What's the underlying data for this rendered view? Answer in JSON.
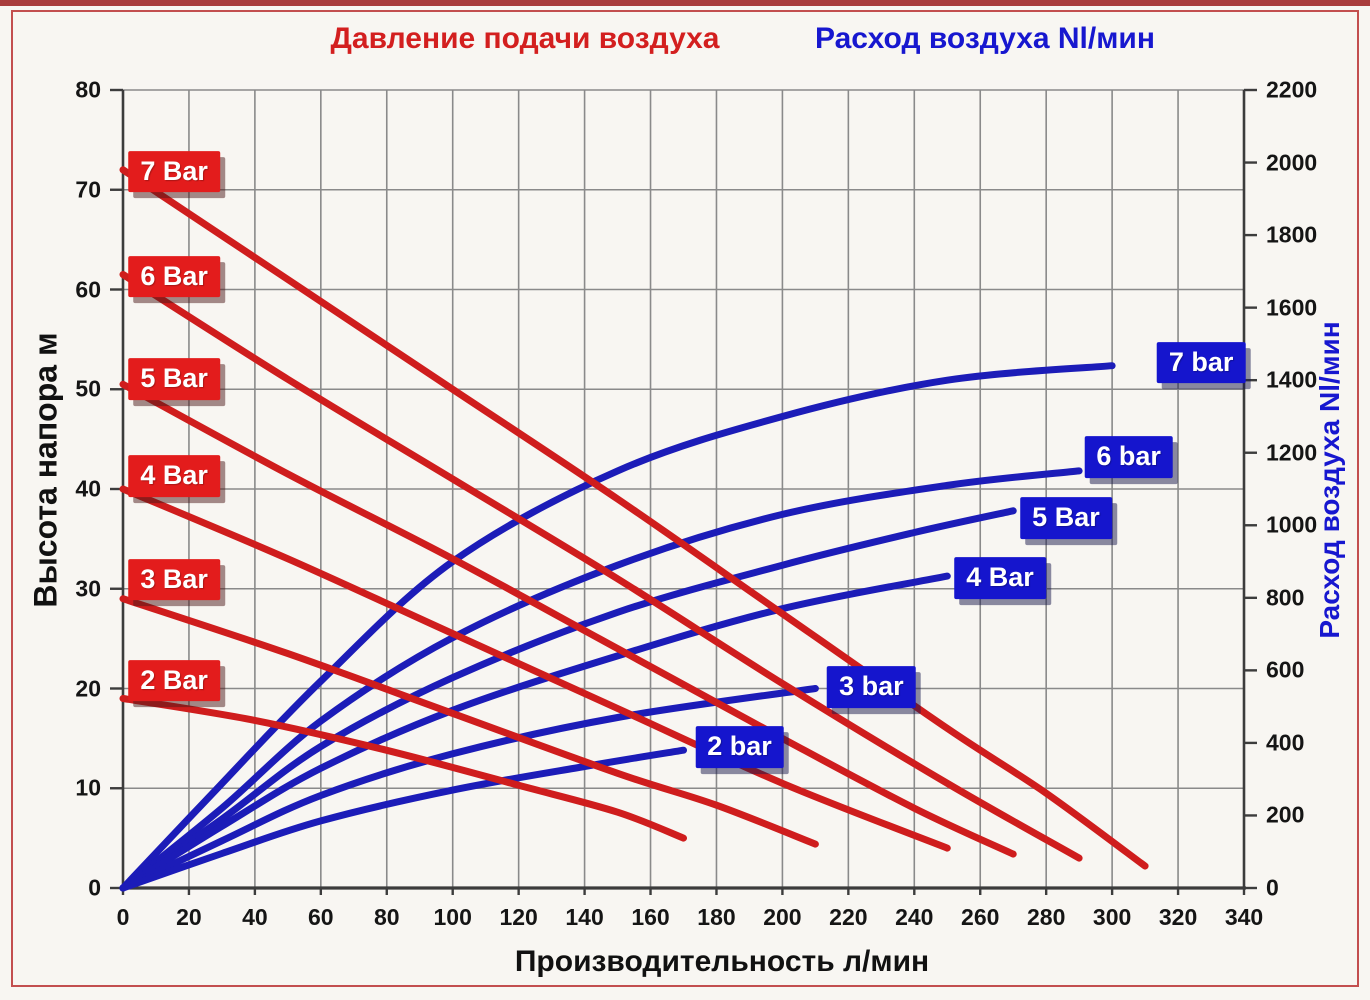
{
  "titles": {
    "pressure": "Давление подачи воздуха",
    "airflow": "Расход воздуха Nl/мин"
  },
  "colors": {
    "red_curve": "#cf1d1d",
    "blue_curve": "#1c1cb8",
    "red_tag_bg": "#e31c1c",
    "blue_tag_bg": "#1515cd",
    "title_red": "#d31f1f",
    "title_blue": "#1717cf",
    "grid": "#8a8a8a",
    "axis": "#3c3c3c",
    "frame_border": "#c34f4f"
  },
  "axes": {
    "x": {
      "label": "Производительность л/мин",
      "min": 0,
      "max": 340,
      "step": 20,
      "ticks": [
        0,
        20,
        40,
        60,
        80,
        100,
        120,
        140,
        160,
        180,
        200,
        220,
        240,
        260,
        280,
        300,
        320,
        340
      ]
    },
    "y_left": {
      "label": "Высота напора м",
      "min": 0,
      "max": 80,
      "step": 10,
      "ticks": [
        0,
        10,
        20,
        30,
        40,
        50,
        60,
        70,
        80
      ]
    },
    "y_right": {
      "label": "Расход воздуха Nl/мин",
      "min": 0,
      "max": 2200,
      "step": 200,
      "ticks": [
        0,
        200,
        400,
        600,
        800,
        1000,
        1200,
        1400,
        1600,
        1800,
        2000,
        2200
      ]
    }
  },
  "chart_data": {
    "type": "line",
    "grid": "on",
    "x_axis": "Производительность л/мин (0–340)",
    "left_axis": "Высота напора м (0–80)",
    "right_axis": "Расход воздуха Nl/мин (0–2200)",
    "series": [
      {
        "group": "pressure",
        "name": "7 Bar",
        "axis": "left",
        "color": "red",
        "label": {
          "text": "7 Bar",
          "x": 15.5,
          "y": 71.8
        },
        "points": [
          [
            0,
            72
          ],
          [
            50,
            61
          ],
          [
            100,
            50
          ],
          [
            150,
            39
          ],
          [
            200,
            27.5
          ],
          [
            250,
            16
          ],
          [
            280,
            9.5
          ],
          [
            310,
            2.2
          ]
        ]
      },
      {
        "group": "pressure",
        "name": "6 Bar",
        "axis": "left",
        "color": "red",
        "label": {
          "text": "6 Bar",
          "x": 15.5,
          "y": 61.3
        },
        "points": [
          [
            0,
            61.5
          ],
          [
            50,
            51
          ],
          [
            100,
            41
          ],
          [
            150,
            31
          ],
          [
            200,
            20.5
          ],
          [
            250,
            10.5
          ],
          [
            290,
            3
          ]
        ]
      },
      {
        "group": "pressure",
        "name": "5 Bar",
        "axis": "left",
        "color": "red",
        "label": {
          "text": "5 Bar",
          "x": 15.5,
          "y": 51
        },
        "points": [
          [
            0,
            50.5
          ],
          [
            50,
            41.5
          ],
          [
            100,
            33
          ],
          [
            150,
            24
          ],
          [
            200,
            15
          ],
          [
            240,
            8
          ],
          [
            270,
            3.4
          ]
        ]
      },
      {
        "group": "pressure",
        "name": "4 Bar",
        "axis": "left",
        "color": "red",
        "label": {
          "text": "4 Bar",
          "x": 15.5,
          "y": 41.3
        },
        "points": [
          [
            0,
            40
          ],
          [
            50,
            33
          ],
          [
            100,
            25.5
          ],
          [
            150,
            18
          ],
          [
            200,
            10.5
          ],
          [
            250,
            4
          ]
        ]
      },
      {
        "group": "pressure",
        "name": "3 Bar",
        "axis": "left",
        "color": "red",
        "label": {
          "text": "3 Bar",
          "x": 15.5,
          "y": 30.9
        },
        "points": [
          [
            0,
            29
          ],
          [
            50,
            23.5
          ],
          [
            100,
            17.5
          ],
          [
            150,
            11.5
          ],
          [
            180,
            8.3
          ],
          [
            210,
            4.4
          ]
        ]
      },
      {
        "group": "pressure",
        "name": "2 Bar",
        "axis": "left",
        "color": "red",
        "label": {
          "text": "2 Bar",
          "x": 15.5,
          "y": 20.8
        },
        "points": [
          [
            0,
            19
          ],
          [
            40,
            16.8
          ],
          [
            80,
            13.8
          ],
          [
            120,
            10.3
          ],
          [
            150,
            7.6
          ],
          [
            170,
            5
          ]
        ]
      },
      {
        "group": "airflow",
        "name": "7 bar",
        "axis": "right",
        "color": "blue",
        "label": {
          "text": "7 bar",
          "x": 327,
          "y": 1448
        },
        "points": [
          [
            0,
            0
          ],
          [
            25,
            240
          ],
          [
            60,
            570
          ],
          [
            100,
            900
          ],
          [
            150,
            1150
          ],
          [
            200,
            1300
          ],
          [
            250,
            1400
          ],
          [
            300,
            1440
          ]
        ]
      },
      {
        "group": "airflow",
        "name": "6 bar",
        "axis": "right",
        "color": "blue",
        "label": {
          "text": "6 bar",
          "x": 305,
          "y": 1188
        },
        "points": [
          [
            0,
            0
          ],
          [
            30,
            220
          ],
          [
            60,
            460
          ],
          [
            100,
            690
          ],
          [
            150,
            890
          ],
          [
            200,
            1030
          ],
          [
            250,
            1110
          ],
          [
            290,
            1150
          ]
        ]
      },
      {
        "group": "airflow",
        "name": "5 Bar",
        "axis": "right",
        "color": "blue",
        "label": {
          "text": "5 Bar",
          "x": 286,
          "y": 1020
        },
        "points": [
          [
            0,
            0
          ],
          [
            30,
            190
          ],
          [
            60,
            390
          ],
          [
            100,
            580
          ],
          [
            150,
            760
          ],
          [
            200,
            890
          ],
          [
            240,
            980
          ],
          [
            270,
            1040
          ]
        ]
      },
      {
        "group": "airflow",
        "name": "4 Bar",
        "axis": "right",
        "color": "blue",
        "label": {
          "text": "4 Bar",
          "x": 266,
          "y": 855
        },
        "points": [
          [
            0,
            0
          ],
          [
            30,
            170
          ],
          [
            60,
            330
          ],
          [
            100,
            490
          ],
          [
            150,
            640
          ],
          [
            200,
            770
          ],
          [
            250,
            860
          ]
        ]
      },
      {
        "group": "airflow",
        "name": "3 bar",
        "axis": "right",
        "color": "blue",
        "label": {
          "text": "3 bar",
          "x": 227,
          "y": 554
        },
        "points": [
          [
            0,
            0
          ],
          [
            30,
            130
          ],
          [
            60,
            255
          ],
          [
            100,
            370
          ],
          [
            150,
            470
          ],
          [
            210,
            550
          ]
        ]
      },
      {
        "group": "airflow",
        "name": "2 bar",
        "axis": "right",
        "color": "blue",
        "label": {
          "text": "2 bar",
          "x": 187,
          "y": 389
        },
        "points": [
          [
            0,
            0
          ],
          [
            30,
            95
          ],
          [
            60,
            185
          ],
          [
            100,
            270
          ],
          [
            140,
            335
          ],
          [
            170,
            380
          ]
        ]
      }
    ]
  }
}
